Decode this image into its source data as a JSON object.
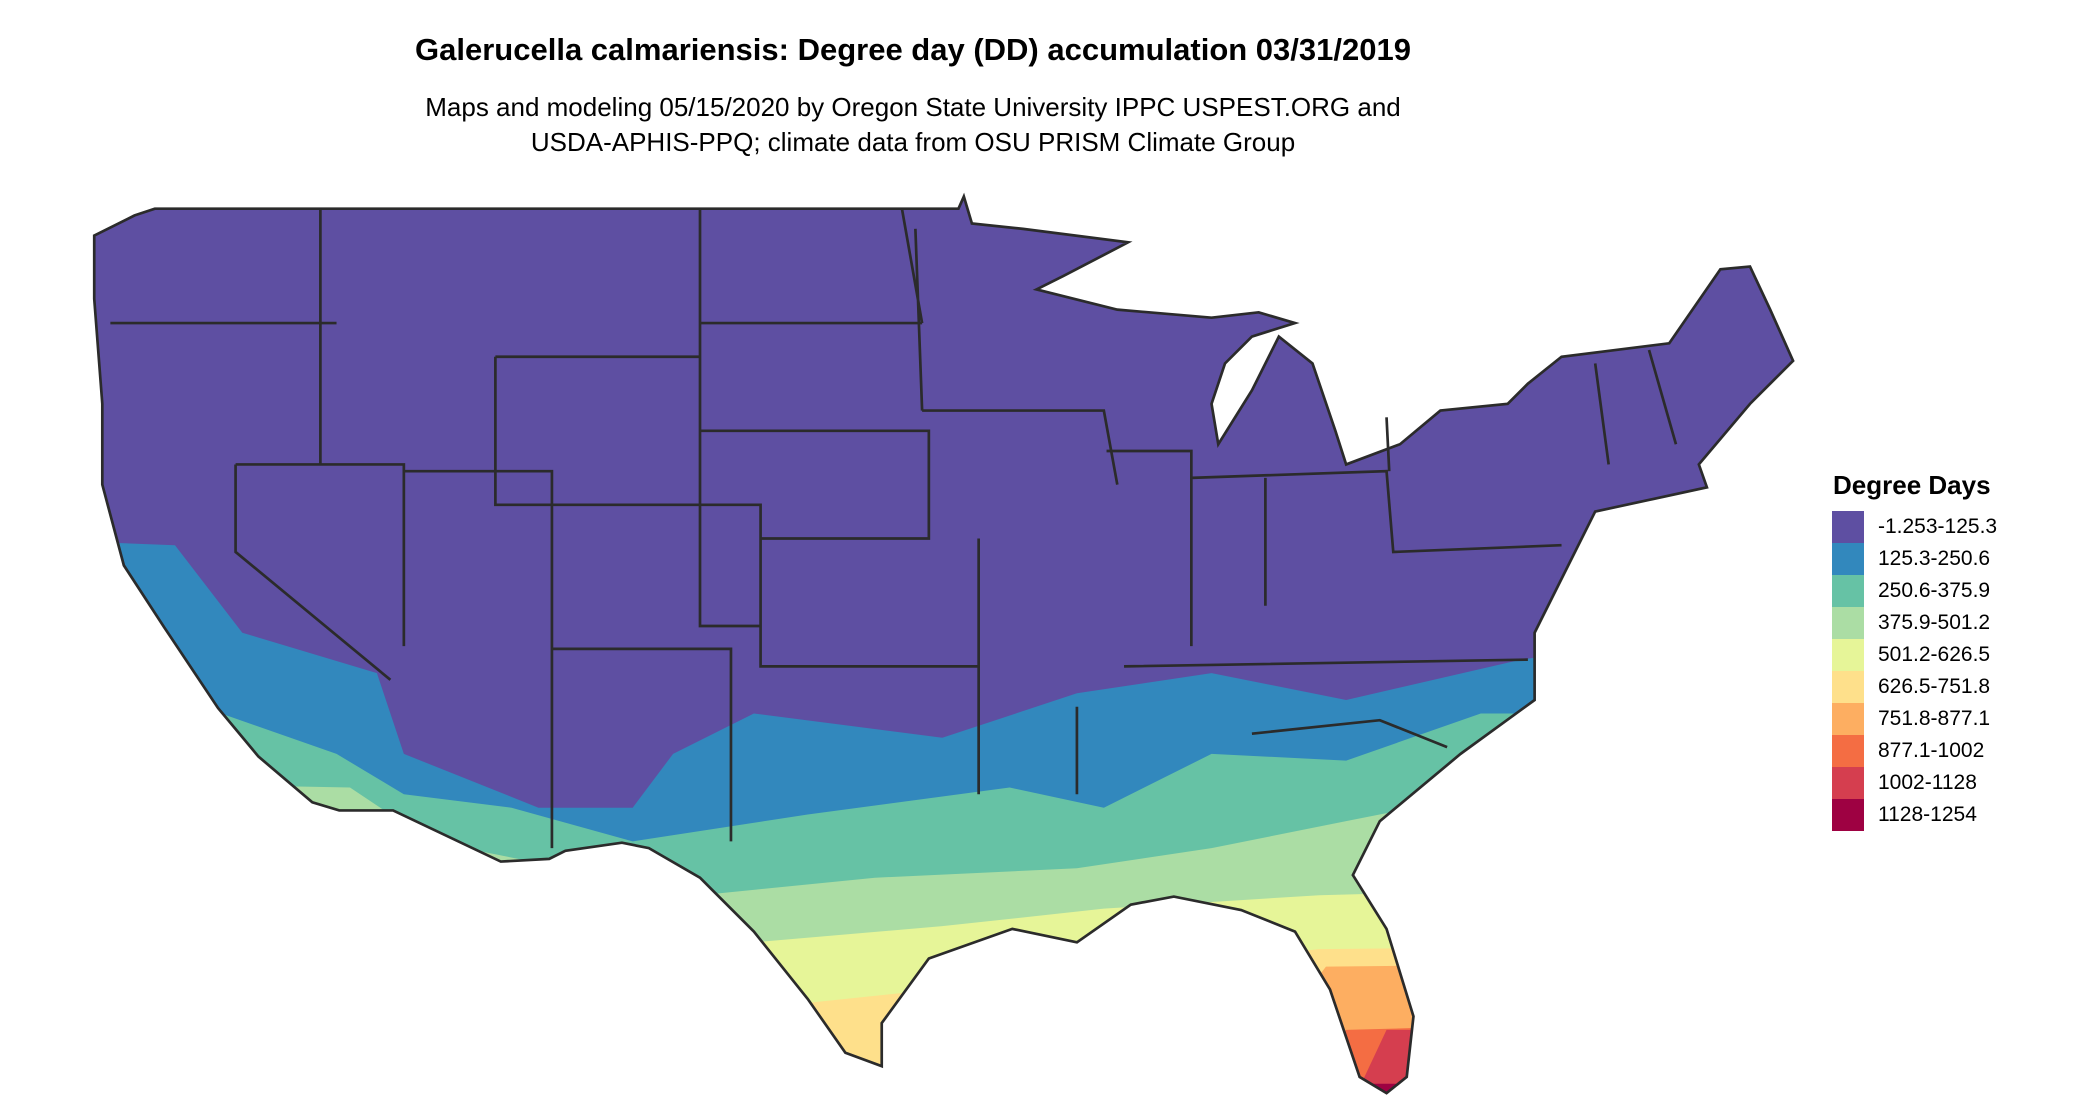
{
  "chart_data": {
    "type": "heatmap",
    "title": "Galerucella calmariensis: Degree day (DD) accumulation 03/31/2019",
    "subtitle_lines": [
      "Maps and modeling 05/15/2020 by Oregon State University IPPC USPEST.ORG and",
      "USDA-APHIS-PPQ; climate data from OSU PRISM Climate Group"
    ],
    "region": "Contiguous United States",
    "legend": {
      "title": "Degree Days",
      "placement": "right",
      "entries": [
        {
          "label": "-1.253-125.3",
          "color": "#5e4fa2"
        },
        {
          "label": "125.3-250.6",
          "color": "#3288bd"
        },
        {
          "label": "250.6-375.9",
          "color": "#66c2a5"
        },
        {
          "label": "375.9-501.2",
          "color": "#abdda4"
        },
        {
          "label": "501.2-626.5",
          "color": "#e6f598"
        },
        {
          "label": "626.5-751.8",
          "color": "#fee08b"
        },
        {
          "label": "751.8-877.1",
          "color": "#fdae61"
        },
        {
          "label": "877.1-1002",
          "color": "#f46d43"
        },
        {
          "label": "1002-1128",
          "color": "#d53e4f"
        },
        {
          "label": "1128-1254",
          "color": "#9e0142"
        }
      ]
    }
  }
}
